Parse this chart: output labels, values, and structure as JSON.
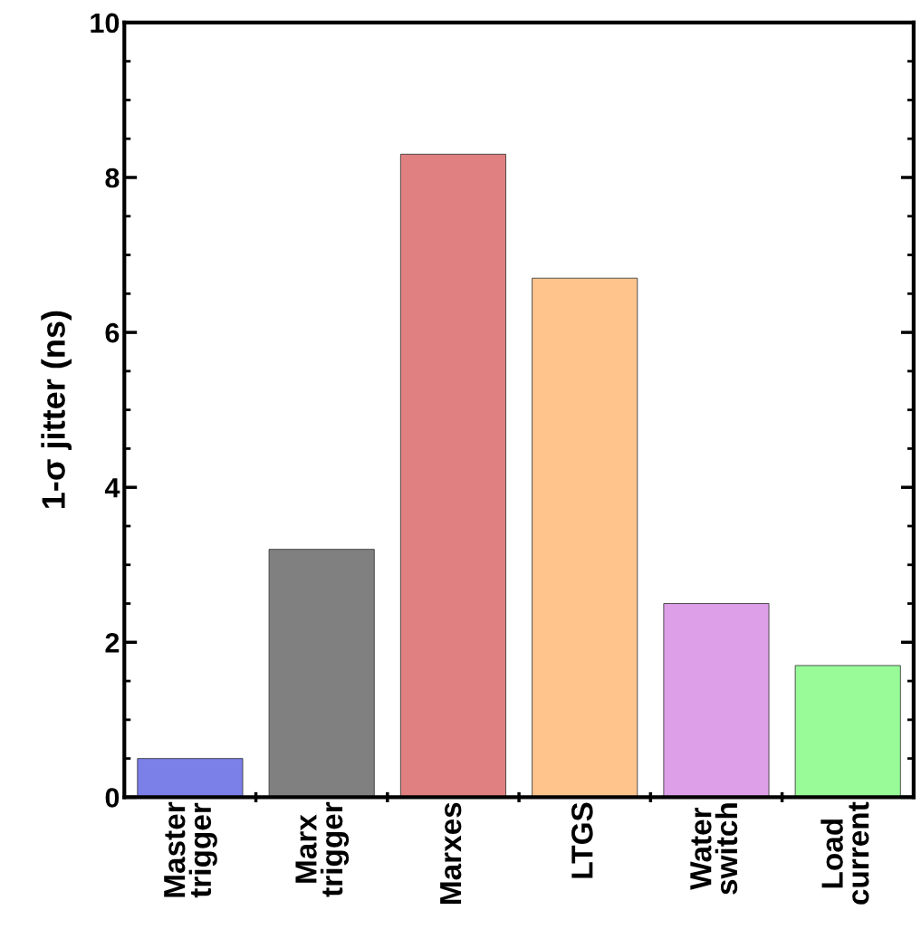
{
  "chart_data": {
    "type": "bar",
    "ylabel": "1-σ jitter (ns)",
    "categories": [
      "Master\ntrigger",
      "Marx\ntrigger",
      "Marxes",
      "LTGS",
      "Water\nswitch",
      "Load\ncurrent"
    ],
    "values": [
      0.5,
      3.2,
      8.3,
      6.7,
      2.5,
      1.7
    ],
    "colors": [
      "#7b7fe8",
      "#808080",
      "#e08080",
      "#ffc48c",
      "#dda0e8",
      "#98fb98"
    ],
    "ylim": [
      0,
      10
    ],
    "yticks": [
      0,
      2,
      4,
      6,
      8,
      10
    ],
    "grid": false,
    "legend": false
  }
}
